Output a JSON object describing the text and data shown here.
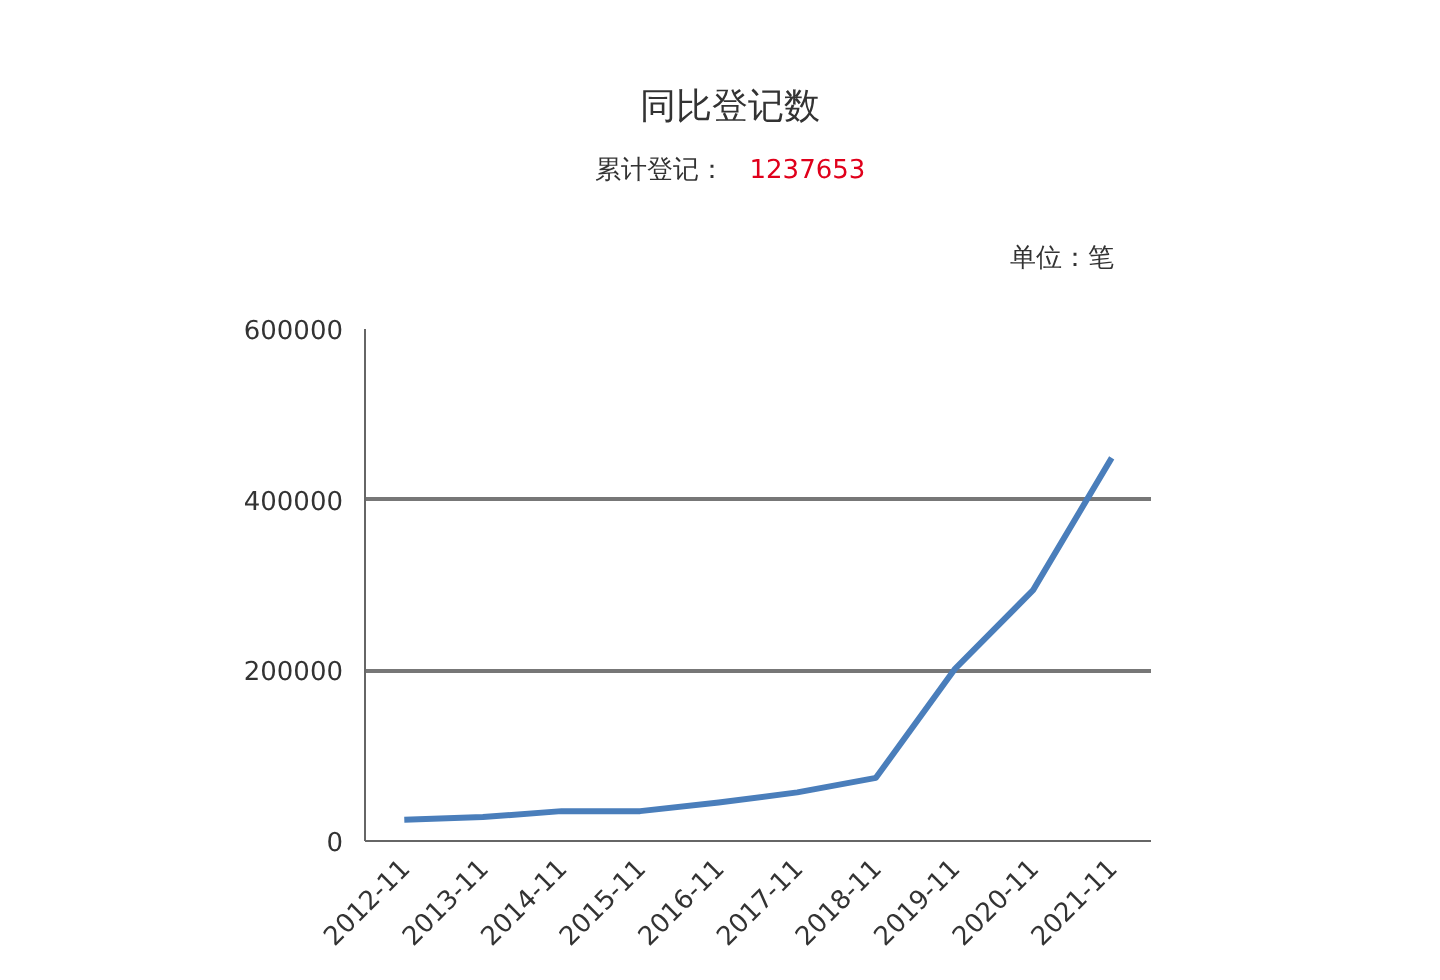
{
  "chart_data": {
    "type": "line",
    "title": "同比登记数",
    "subtitle": "累计登记：",
    "annotations": [
      "1237653",
      "单位：笔"
    ],
    "categories": [
      "2012-11",
      "2013-11",
      "2014-11",
      "2015-11",
      "2016-11",
      "2017-11",
      "2018-11",
      "2019-11",
      "2020-11",
      "2021-11"
    ],
    "series": [
      {
        "color": "#4a7ebb",
        "values": [
          25000,
          28000,
          35000,
          35000,
          45000,
          57000,
          74000,
          201000,
          294000,
          449000
        ]
      }
    ],
    "ylim": [
      0,
      600000
    ],
    "yticks": [
      0,
      200000,
      400000,
      600000
    ],
    "grid": "y",
    "marker": "none",
    "line_style": "solid"
  }
}
